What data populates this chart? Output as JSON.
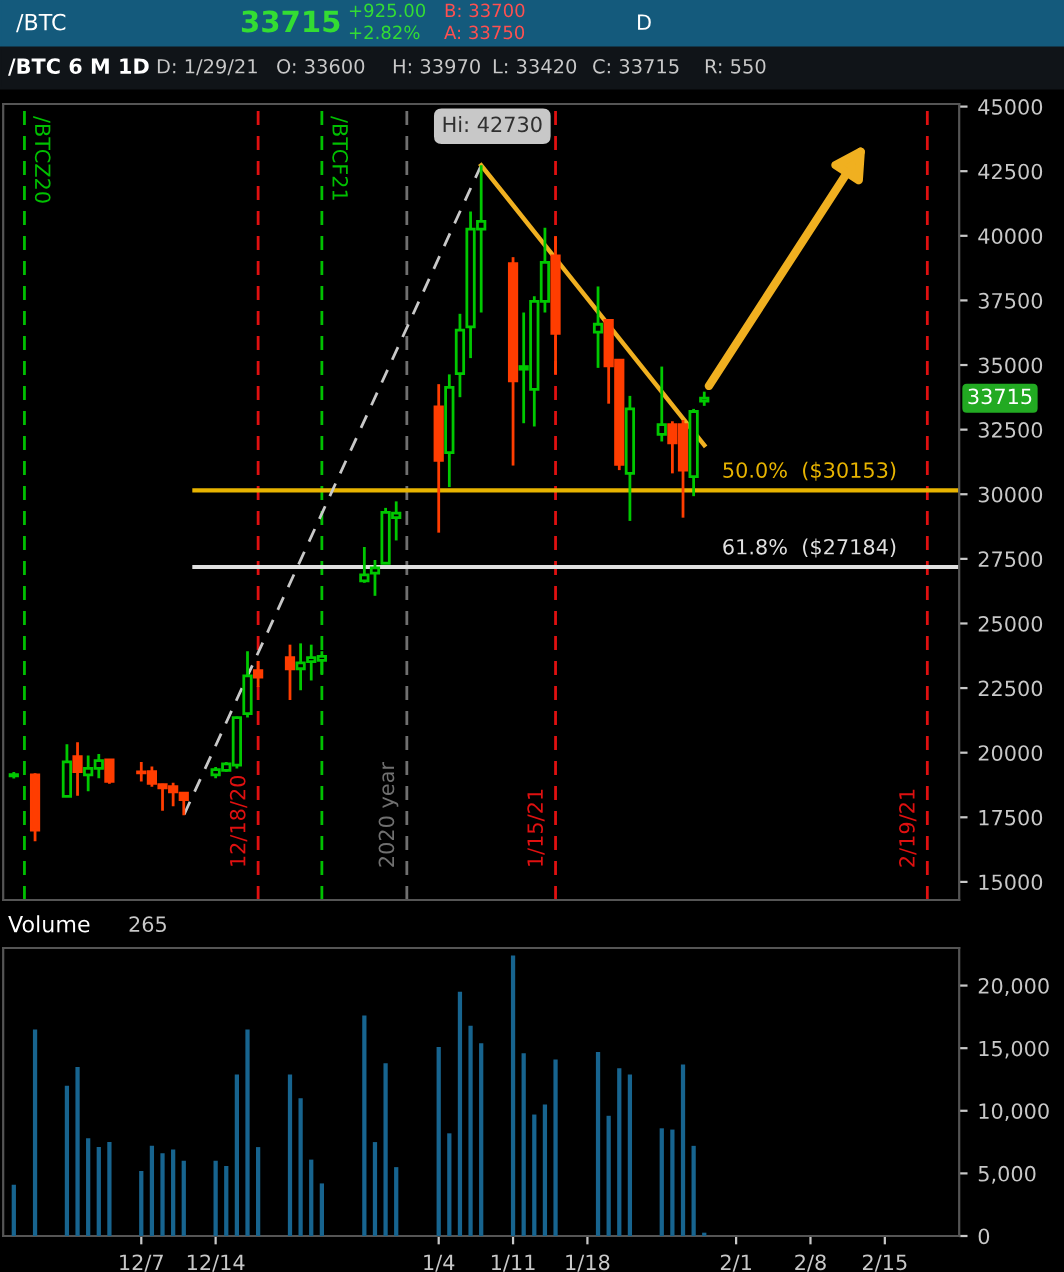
{
  "chart_data": [
    {
      "type": "candlestick",
      "title": "/BTC 6 M 1D",
      "annotations": [
        "/BTC",
        "33715",
        "+925.00",
        "+2.82%",
        "B: 33700",
        "A: 33750",
        "D",
        "D: 1/29/21",
        "O: 33600",
        "H: 33970",
        "L: 33420",
        "C: 33715",
        "R: 550",
        {
          "text": "Hi: 42730",
          "x": "2021-01-08",
          "y": 42730
        },
        "33715"
      ],
      "x": [
        "2020-11-25",
        "2020-11-27",
        "2020-11-30",
        "2020-12-01",
        "2020-12-02",
        "2020-12-03",
        "2020-12-04",
        "2020-12-07",
        "2020-12-08",
        "2020-12-09",
        "2020-12-10",
        "2020-12-11",
        "2020-12-14",
        "2020-12-15",
        "2020-12-16",
        "2020-12-17",
        "2020-12-18",
        "2020-12-21",
        "2020-12-22",
        "2020-12-23",
        "2020-12-24",
        "2020-12-28",
        "2020-12-29",
        "2020-12-30",
        "2020-12-31",
        "2021-01-04",
        "2021-01-05",
        "2021-01-06",
        "2021-01-07",
        "2021-01-08",
        "2021-01-11",
        "2021-01-12",
        "2021-01-13",
        "2021-01-14",
        "2021-01-15",
        "2021-01-19",
        "2021-01-20",
        "2021-01-21",
        "2021-01-22",
        "2021-01-25",
        "2021-01-26",
        "2021-01-27",
        "2021-01-28",
        "2021-01-29"
      ],
      "ohlc": [
        [
          19100,
          19250,
          19000,
          19150
        ],
        [
          19140,
          19200,
          16570,
          17000
        ],
        [
          18308,
          20324,
          18300,
          19644
        ],
        [
          19846,
          20400,
          18334,
          19266
        ],
        [
          19140,
          19896,
          18510,
          19392
        ],
        [
          19392,
          19946,
          19014,
          19694
        ],
        [
          19720,
          19750,
          18800,
          18888
        ],
        [
          19260,
          19644,
          18888,
          19220
        ],
        [
          19266,
          19468,
          18686,
          18812
        ],
        [
          18762,
          18800,
          17754,
          18636
        ],
        [
          18686,
          18838,
          17930,
          18485
        ],
        [
          18434,
          18460,
          17577,
          18182
        ],
        [
          19140,
          19442,
          19014,
          19342
        ],
        [
          19317,
          19644,
          19266,
          19570
        ],
        [
          19518,
          21400,
          19392,
          21358
        ],
        [
          21509,
          23928,
          21358,
          22970
        ],
        [
          23172,
          23550,
          22542,
          22920
        ],
        [
          23676,
          24180,
          22038,
          23248
        ],
        [
          23248,
          24230,
          22416,
          23474
        ],
        [
          23525,
          24180,
          22794,
          23676
        ],
        [
          23575,
          23928,
          23046,
          23727
        ],
        [
          26650,
          27960,
          26574,
          26876
        ],
        [
          26952,
          27456,
          26070,
          27154
        ],
        [
          27330,
          29472,
          27330,
          29296
        ],
        [
          29094,
          29724,
          28212,
          29270
        ],
        [
          33378,
          34260,
          28514,
          31312
        ],
        [
          31614,
          34638,
          30278,
          34134
        ],
        [
          34663,
          36982,
          33756,
          36352
        ],
        [
          36478,
          40938,
          35268,
          40258
        ],
        [
          40258,
          42730,
          37032,
          40560
        ],
        [
          38922,
          39174,
          31110,
          34386
        ],
        [
          34840,
          37032,
          32748,
          34940
        ],
        [
          34058,
          37662,
          32622,
          37460
        ],
        [
          37460,
          40308,
          37032,
          38972
        ],
        [
          39224,
          39980,
          34638,
          36226
        ],
        [
          36276,
          38040,
          34890,
          36578
        ],
        [
          36730,
          36730,
          33504,
          34966
        ],
        [
          35192,
          35192,
          30934,
          31160
        ],
        [
          30808,
          33806,
          28968,
          33302
        ],
        [
          32320,
          34940,
          32042,
          32698
        ],
        [
          32698,
          32824,
          30808,
          31992
        ],
        [
          32698,
          32874,
          29094,
          30934
        ],
        [
          30682,
          33302,
          29926,
          33202
        ],
        [
          33600,
          33970,
          33420,
          33715
        ]
      ],
      "colors": [
        "#00c800",
        "#ff3d00",
        "#00c800",
        "#ff3d00",
        "#00c800",
        "#00c800",
        "#ff3d00",
        "#ff3d00",
        "#ff3d00",
        "#ff3d00",
        "#ff3d00",
        "#ff3d00",
        "#00c800",
        "#00c800",
        "#00c800",
        "#00c800",
        "#ff3d00",
        "#ff3d00",
        "#00c800",
        "#00c800",
        "#00c800",
        "#00c800",
        "#00c800",
        "#00c800",
        "#00c800",
        "#ff3d00",
        "#00c800",
        "#00c800",
        "#00c800",
        "#00c800",
        "#ff3d00",
        "#00c800",
        "#00c800",
        "#00c800",
        "#ff3d00",
        "#00c800",
        "#ff3d00",
        "#ff3d00",
        "#00c800",
        "#00c800",
        "#ff3d00",
        "#ff3d00",
        "#00c800",
        "#00c800"
      ],
      "series": [
        {
          "type": "line",
          "color": "#c8c8c8",
          "line_style": "dashed",
          "x": [
            "2020-12-11",
            "2021-01-08"
          ],
          "values": [
            17577,
            42730
          ]
        },
        {
          "type": "line",
          "color": "#f0b020",
          "line_style": "solid",
          "x": [
            "2021-01-08",
            "2021-01-29"
          ],
          "values": [
            42730,
            31900
          ]
        }
      ],
      "ref_lines": [
        {
          "axis": "x",
          "value": "2020-11-26",
          "label": "/BTCZ20",
          "color": "#00c000",
          "line_style": "dashed"
        },
        {
          "axis": "x",
          "value": "2020-12-24",
          "label": "/BTCF21",
          "color": "#00c000",
          "line_style": "dashed"
        },
        {
          "axis": "x",
          "value": "2020-12-18",
          "label": "12/18/20",
          "color": "#e01010",
          "line_style": "dashed"
        },
        {
          "axis": "x",
          "value": "2021-01-01",
          "label": "2020 year",
          "color": "#707070",
          "line_style": "dashed"
        },
        {
          "axis": "x",
          "value": "2021-01-15",
          "label": "1/15/21",
          "color": "#e01010",
          "line_style": "dashed"
        },
        {
          "axis": "x",
          "value": "2021-02-19",
          "label": "2/19/21",
          "color": "#e01010",
          "line_style": "dashed"
        },
        {
          "axis": "y",
          "value": 30153,
          "label": "50.0%  ($30153)",
          "color": "#e8b400",
          "line_style": "solid"
        },
        {
          "axis": "y",
          "value": 27184,
          "label": "61.8%  ($27184)",
          "color": "#e0e0e0",
          "line_style": "solid"
        }
      ],
      "xlim": [
        "2020-11-24",
        "2021-02-22"
      ],
      "ylim": [
        14300,
        45100
      ],
      "yticks": [
        15000,
        17500,
        20000,
        22500,
        25000,
        27500,
        30000,
        32500,
        35000,
        37500,
        40000,
        42500,
        45000
      ],
      "tick_labels": "y"
    },
    {
      "type": "bar",
      "title": "Volume",
      "annotations": [
        "265"
      ],
      "color": "#17648f",
      "x": [
        "2020-11-25",
        "2020-11-27",
        "2020-11-30",
        "2020-12-01",
        "2020-12-02",
        "2020-12-03",
        "2020-12-04",
        "2020-12-07",
        "2020-12-08",
        "2020-12-09",
        "2020-12-10",
        "2020-12-11",
        "2020-12-14",
        "2020-12-15",
        "2020-12-16",
        "2020-12-17",
        "2020-12-18",
        "2020-12-21",
        "2020-12-22",
        "2020-12-23",
        "2020-12-24",
        "2020-12-28",
        "2020-12-29",
        "2020-12-30",
        "2020-12-31",
        "2021-01-04",
        "2021-01-05",
        "2021-01-06",
        "2021-01-07",
        "2021-01-08",
        "2021-01-11",
        "2021-01-12",
        "2021-01-13",
        "2021-01-14",
        "2021-01-15",
        "2021-01-19",
        "2021-01-20",
        "2021-01-21",
        "2021-01-22",
        "2021-01-25",
        "2021-01-26",
        "2021-01-27",
        "2021-01-28",
        "2021-01-29"
      ],
      "values": [
        4100,
        16500,
        12000,
        13500,
        7800,
        7100,
        7500,
        5200,
        7200,
        6600,
        6900,
        6000,
        6000,
        5600,
        12900,
        16500,
        7100,
        12900,
        11000,
        6100,
        4200,
        17600,
        7500,
        13800,
        5500,
        15100,
        8200,
        19500,
        16800,
        15400,
        22400,
        14600,
        9700,
        10500,
        14100,
        14700,
        9600,
        13400,
        12900,
        8600,
        8500,
        13700,
        7200,
        265
      ],
      "xlim": [
        "2020-11-24",
        "2021-02-22"
      ],
      "ylim": [
        0,
        23000
      ],
      "yticks": [
        {
          "value": 0,
          "label": "0"
        },
        {
          "value": 5000,
          "label": "5,000"
        },
        {
          "value": 10000,
          "label": "10,000"
        },
        {
          "value": 15000,
          "label": "15,000"
        },
        {
          "value": 20000,
          "label": "20,000"
        }
      ],
      "xticks": [
        {
          "value": "2020-12-07",
          "label": "12/7"
        },
        {
          "value": "2020-12-14",
          "label": "12/14"
        },
        {
          "value": "2021-01-04",
          "label": "1/4"
        },
        {
          "value": "2021-01-11",
          "label": "1/11"
        },
        {
          "value": "2021-01-18",
          "label": "1/18"
        },
        {
          "value": "2021-02-01",
          "label": "2/1"
        },
        {
          "value": "2021-02-08",
          "label": "2/8"
        },
        {
          "value": "2021-02-15",
          "label": "2/15"
        }
      ]
    }
  ]
}
